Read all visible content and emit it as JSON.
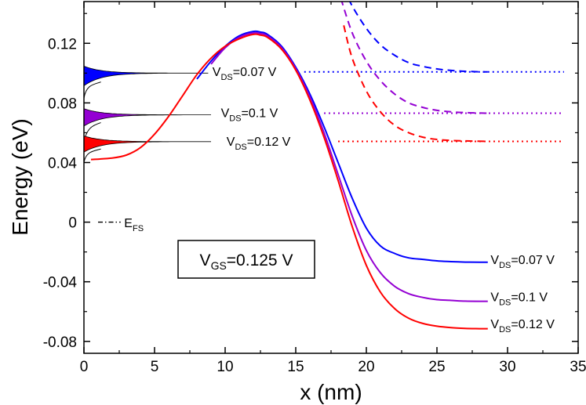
{
  "chart_data": {
    "type": "line",
    "xlabel": "x (nm)",
    "ylabel": "Energy (eV)",
    "xlim": [
      0,
      35
    ],
    "ylim": [
      -0.088,
      0.148
    ],
    "x_ticks": [
      0,
      5,
      10,
      15,
      20,
      25,
      30,
      35
    ],
    "x_tick_labels": [
      "0",
      "5",
      "10",
      "15",
      "20",
      "25",
      "30",
      "35"
    ],
    "y_ticks": [
      -0.08,
      -0.04,
      0,
      0.04,
      0.08,
      0.12
    ],
    "y_tick_labels": [
      "-0.08",
      "-0.04",
      "0",
      "0.04",
      "0.08",
      "0.12"
    ],
    "colors": {
      "blue": "#0000ff",
      "purple": "#9400d3",
      "red": "#ff0000"
    },
    "series": [
      {
        "name": "Conduction band, VDS=0.07 V",
        "color_key": "blue",
        "style": "solid",
        "x": [
          8.0,
          9.0,
          10.0,
          11.0,
          12.0,
          12.5,
          13.0,
          14.0,
          15.0,
          16.0,
          17.0,
          18.0,
          19.0,
          20.0,
          21.0,
          22.0,
          23.0,
          24.0,
          25.0,
          26.0,
          27.0,
          28.0,
          28.6
        ],
        "y": [
          0.096,
          0.108,
          0.118,
          0.125,
          0.128,
          0.1275,
          0.126,
          0.118,
          0.104,
          0.086,
          0.064,
          0.04,
          0.016,
          -0.004,
          -0.016,
          -0.021,
          -0.024,
          -0.025,
          -0.026,
          -0.0265,
          -0.0268,
          -0.0269,
          -0.0269
        ]
      },
      {
        "name": "Conduction band, VDS=0.1 V",
        "color_key": "purple",
        "style": "solid",
        "x": [
          9.0,
          10.0,
          11.0,
          12.0,
          12.5,
          13.0,
          14.0,
          15.0,
          16.0,
          17.0,
          18.0,
          19.0,
          20.0,
          21.0,
          22.0,
          23.0,
          24.0,
          25.0,
          26.0,
          27.0,
          28.0,
          28.6
        ],
        "y": [
          0.106,
          0.117,
          0.124,
          0.127,
          0.1265,
          0.125,
          0.117,
          0.103,
          0.084,
          0.06,
          0.032,
          0.004,
          -0.019,
          -0.034,
          -0.043,
          -0.048,
          -0.0505,
          -0.052,
          -0.0525,
          -0.053,
          -0.0531,
          -0.0531
        ]
      },
      {
        "name": "Conduction band, VDS=0.12 V",
        "color_key": "red",
        "style": "solid",
        "x": [
          0.5,
          2.0,
          3.0,
          4.0,
          5.0,
          6.0,
          7.0,
          8.0,
          9.0,
          10.0,
          11.0,
          12.0,
          12.5,
          13.0,
          14.0,
          15.0,
          16.0,
          17.0,
          18.0,
          19.0,
          20.0,
          21.0,
          22.0,
          23.0,
          24.0,
          25.0,
          26.0,
          27.0,
          28.0,
          28.6
        ],
        "y": [
          0.042,
          0.043,
          0.045,
          0.05,
          0.059,
          0.071,
          0.085,
          0.099,
          0.11,
          0.118,
          0.123,
          0.126,
          0.1255,
          0.124,
          0.116,
          0.102,
          0.082,
          0.057,
          0.028,
          -0.003,
          -0.029,
          -0.047,
          -0.058,
          -0.0645,
          -0.068,
          -0.0698,
          -0.0708,
          -0.0713,
          -0.0715,
          -0.0715
        ]
      },
      {
        "name": "Dashed band, VDS=0.07 V",
        "color_key": "blue",
        "style": "dashed",
        "x": [
          18.4,
          19.0,
          20.0,
          21.0,
          22.0,
          23.0,
          24.0,
          25.0,
          26.0,
          27.0,
          28.0,
          28.6
        ],
        "y": [
          0.157,
          0.145,
          0.13,
          0.119,
          0.112,
          0.107,
          0.1045,
          0.1028,
          0.1018,
          0.1012,
          0.1009,
          0.1008
        ]
      },
      {
        "name": "Dashed band, VDS=0.1 V",
        "color_key": "purple",
        "style": "dashed",
        "x": [
          18.2,
          19.0,
          20.0,
          21.0,
          22.0,
          23.0,
          24.0,
          25.0,
          26.0,
          27.0,
          28.0,
          28.6
        ],
        "y": [
          0.15,
          0.127,
          0.108,
          0.095,
          0.086,
          0.08,
          0.077,
          0.075,
          0.074,
          0.0735,
          0.0732,
          0.0731
        ]
      },
      {
        "name": "Dashed band, VDS=0.12 V",
        "color_key": "red",
        "style": "dashed",
        "x": [
          18.4,
          19.0,
          20.0,
          21.0,
          22.0,
          23.0,
          24.0,
          25.0,
          26.0,
          27.0,
          28.0,
          28.6
        ],
        "y": [
          0.132,
          0.11,
          0.088,
          0.074,
          0.065,
          0.06,
          0.057,
          0.0555,
          0.0548,
          0.0545,
          0.0543,
          0.0542
        ]
      }
    ],
    "fermi_levels": [
      {
        "color_key": "blue",
        "x_start": 15.6,
        "x_end": 34.0,
        "y": 0.1008
      },
      {
        "color_key": "purple",
        "x_start": 17.0,
        "x_end": 34.0,
        "y": 0.0731
      },
      {
        "color_key": "red",
        "x_start": 18.0,
        "x_end": 34.0,
        "y": 0.0542
      }
    ],
    "distributions": [
      {
        "color_key": "blue",
        "y_peak": 0.1,
        "height": 0.0085,
        "x_extent": 8.8,
        "tail": 0.017
      },
      {
        "color_key": "purple",
        "y_peak": 0.072,
        "height": 0.0075,
        "x_extent": 9.0,
        "tail": 0.019
      },
      {
        "color_key": "red",
        "y_peak": 0.054,
        "height": 0.007,
        "x_extent": 9.0,
        "tail": 0.014
      }
    ],
    "annotations": {
      "left": [
        {
          "main": "V",
          "sub": "DS",
          "rest": "=0.07 V",
          "x": 9.1,
          "y": 0.1013
        },
        {
          "main": "V",
          "sub": "DS",
          "rest": "=0.1 V",
          "x": 9.7,
          "y": 0.0735
        },
        {
          "main": "V",
          "sub": "DS",
          "rest": "=0.12 V",
          "x": 10.1,
          "y": 0.0545
        }
      ],
      "right": [
        {
          "main": "V",
          "sub": "DS",
          "rest": "=0.07 V",
          "x": 28.8,
          "y": -0.025
        },
        {
          "main": "V",
          "sub": "DS",
          "rest": "=0.1 V",
          "x": 28.8,
          "y": -0.05
        },
        {
          "main": "V",
          "sub": "DS",
          "rest": "=0.12 V",
          "x": 28.8,
          "y": -0.068
        }
      ],
      "legend": {
        "main": "E",
        "sub": "FS",
        "line_x": [
          1.0,
          2.6
        ],
        "y": 0.0,
        "text_x": 2.85,
        "text_y": -0.0045
      },
      "vgs": {
        "main": "V",
        "sub": "GS",
        "rest": "=0.125 V"
      }
    }
  }
}
